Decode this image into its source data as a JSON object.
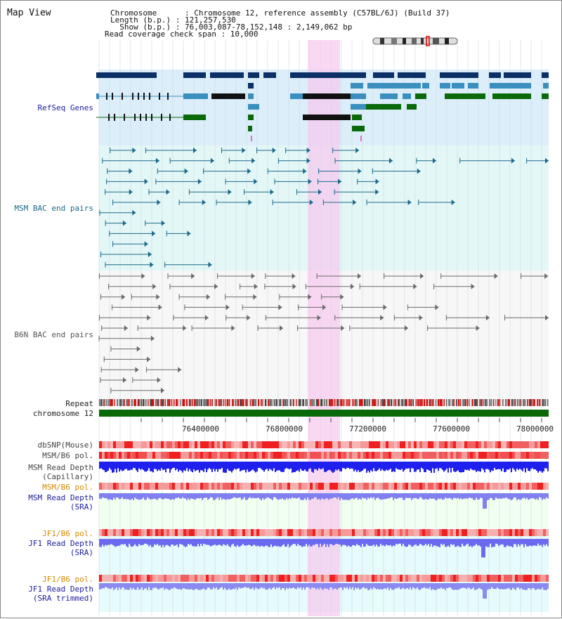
{
  "header": {
    "title": "Map View",
    "chromosome_line": "Chromosome      : Chromosome 12, reference assembly (C57BL/6J) (Build 37)",
    "length_line": "Length (b.p.) : 121,257,530",
    "show_line": "  Show (b.p.) : 76,003,087-78,152,148 : 2,149,062 bp",
    "coverage_line": "Read coverage check span : 10,000"
  },
  "tracks": {
    "refseq": "RefSeq Genes",
    "msm_bac": "MSM BAC end pairs",
    "b6n_bac": "B6N BAC end pairs",
    "repeat": "Repeat",
    "chromosome": "chromosome 12",
    "dbsnp": "dbSNP(Mouse)",
    "msm_b6_pol_1": "MSM/B6 pol.",
    "msm_read_depth_cap_1": "MSM Read Depth",
    "msm_read_depth_cap_2": "(Capillary)",
    "msm_b6_pol_2": "MSM/B6 pol.",
    "msm_read_depth_sra_1": "MSM Read Depth",
    "msm_read_depth_sra_2": "(SRA)",
    "jf1_b6_pol_1": "JF1/B6 pol.",
    "jf1_read_depth_sra_1": "JF1 Read Depth",
    "jf1_read_depth_sra_2": "(SRA)",
    "jf1_b6_pol_2": "JF1/B6 pol.",
    "jf1_read_depth_trim_1": "JF1 Read Depth",
    "jf1_read_depth_trim_2": "(SRA trimmed)"
  },
  "axis": {
    "ticks": [
      "76400000",
      "76800000",
      "77200000",
      "77600000",
      "78000000"
    ]
  },
  "colors": {
    "refseq_bg": "#dbeefa",
    "msm_bg": "#e3f7f7",
    "highlight": "#f7c8ee",
    "refseq_dark": "#0a3066",
    "refseq_mid": "#3a8fbf",
    "refseq_green": "#0a6a0a",
    "msm_line": "#1a6a8a",
    "b6n_line": "#6a6a6a",
    "depth_blue": "#2020ee",
    "depth_light": "#8080f0",
    "orange_label": "#d38a00",
    "navy_label": "#1c1c9c"
  }
}
